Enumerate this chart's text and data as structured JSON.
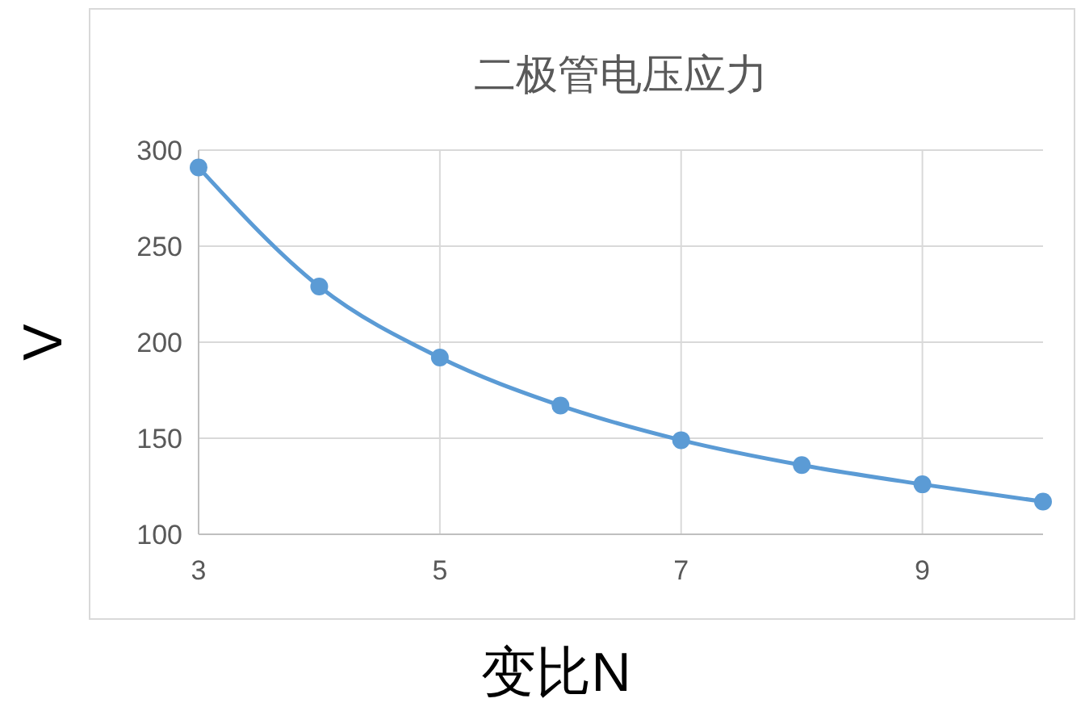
{
  "chart_data": {
    "type": "line",
    "title": "二极管电压应力",
    "xlabel": "变比N",
    "ylabel": "V",
    "x": [
      3,
      4,
      5,
      6,
      7,
      8,
      9,
      10
    ],
    "series": [
      {
        "color": "#5b9bd5",
        "values": [
          291,
          229,
          192,
          167,
          149,
          136,
          126,
          117
        ]
      }
    ],
    "xlim": [
      3,
      10
    ],
    "xticks": [
      3,
      5,
      7,
      9
    ],
    "ylim": [
      100,
      300
    ],
    "yticks": [
      100,
      150,
      200,
      250,
      300
    ],
    "grid": true,
    "marker": "circle",
    "line_style": "solid"
  }
}
